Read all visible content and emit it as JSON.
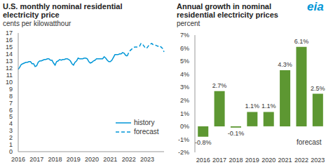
{
  "logo": "eia",
  "chart_data": [
    {
      "type": "line",
      "title": "U.S. monthly nominal residential electricity price",
      "subtitle": "cents per kilowatthour",
      "categories": [
        "2016",
        null,
        null,
        null,
        null,
        null,
        null,
        null,
        null,
        null,
        null,
        null,
        "2017",
        null,
        null,
        null,
        null,
        null,
        null,
        null,
        null,
        null,
        null,
        null,
        "2018",
        null,
        null,
        null,
        null,
        null,
        null,
        null,
        null,
        null,
        null,
        null,
        "2019",
        null,
        null,
        null,
        null,
        null,
        null,
        null,
        null,
        null,
        null,
        null,
        "2020",
        null,
        null,
        null,
        null,
        null,
        null,
        null,
        null,
        null,
        null,
        null,
        "2021",
        null,
        null,
        null,
        null,
        null,
        null,
        null,
        null,
        null,
        null,
        null,
        "2022",
        null,
        null,
        null,
        null,
        null,
        null,
        null,
        null,
        null,
        null,
        null,
        "2023",
        null,
        null,
        null,
        null,
        null,
        null,
        null,
        null,
        null,
        null,
        null
      ],
      "series": [
        {
          "name": "history",
          "color": "#0096d7",
          "line_style": "solid",
          "values": [
            11.8,
            12.1,
            12.5,
            12.6,
            12.7,
            12.8,
            12.8,
            12.9,
            12.9,
            12.6,
            12.6,
            12.2,
            12.3,
            12.8,
            13.0,
            13.0,
            13.1,
            13.2,
            13.2,
            13.3,
            13.3,
            13.1,
            13.1,
            12.7,
            12.4,
            12.9,
            13.0,
            13.2,
            13.1,
            13.2,
            13.2,
            13.3,
            13.3,
            13.2,
            13.0,
            12.6,
            12.4,
            12.8,
            13.0,
            13.4,
            13.3,
            13.3,
            13.3,
            13.4,
            13.4,
            13.3,
            12.9,
            12.7,
            12.8,
            13.0,
            13.1,
            13.3,
            13.3,
            13.3,
            13.3,
            13.3,
            13.6,
            13.4,
            13.1,
            12.9,
            12.9,
            13.1,
            13.5,
            13.9,
            13.9,
            13.9,
            14.0,
            14.0,
            14.2,
            14.1,
            13.8,
            13.7,
            null,
            null,
            null,
            null,
            null,
            null,
            null,
            null,
            null,
            null,
            null,
            null,
            null,
            null,
            null,
            null,
            null,
            null,
            null,
            null,
            null,
            null,
            null,
            null
          ]
        },
        {
          "name": "forecast",
          "color": "#0096d7",
          "line_style": "dashed",
          "values": [
            null,
            null,
            null,
            null,
            null,
            null,
            null,
            null,
            null,
            null,
            null,
            null,
            null,
            null,
            null,
            null,
            null,
            null,
            null,
            null,
            null,
            null,
            null,
            null,
            null,
            null,
            null,
            null,
            null,
            null,
            null,
            null,
            null,
            null,
            null,
            null,
            null,
            null,
            null,
            null,
            null,
            null,
            null,
            null,
            null,
            null,
            null,
            null,
            null,
            null,
            null,
            null,
            null,
            null,
            null,
            null,
            null,
            null,
            null,
            null,
            null,
            null,
            null,
            null,
            null,
            null,
            null,
            null,
            null,
            null,
            null,
            13.7,
            14.2,
            14.5,
            14.7,
            14.9,
            15.0,
            15.0,
            15.0,
            15.1,
            15.5,
            15.4,
            15.1,
            14.8,
            14.9,
            15.2,
            15.4,
            15.5,
            15.3,
            15.3,
            15.2,
            15.1,
            15.2,
            15.0,
            14.8,
            14.3
          ]
        }
      ],
      "ylim": [
        0,
        17
      ],
      "yticks": [
        0,
        1,
        2,
        3,
        4,
        5,
        6,
        7,
        8,
        9,
        10,
        11,
        12,
        13,
        14,
        15,
        16,
        17
      ],
      "grid": false,
      "legend": "lower right"
    },
    {
      "type": "bar",
      "title": "Annual growth in nominal residential electricity prices",
      "subtitle": "percent",
      "categories": [
        "2016",
        "2017",
        "2018",
        "2019",
        "2020",
        "2021",
        "2022",
        "2023"
      ],
      "values": [
        -0.8,
        2.7,
        -0.1,
        1.1,
        1.1,
        4.3,
        6.1,
        2.5
      ],
      "value_labels": [
        "-0.8%",
        "2.7%",
        "-0.1%",
        "1.1%",
        "1.1%",
        "4.3%",
        "6.1%",
        "2.5%"
      ],
      "data_labels": true,
      "color": "#5d9732",
      "ylim": [
        -2,
        7
      ],
      "yticks": [
        {
          "value": -2,
          "label": "-2%"
        },
        {
          "value": -1,
          "label": "-1%"
        },
        {
          "value": 0,
          "label": "0%"
        },
        {
          "value": 1,
          "label": "1%"
        },
        {
          "value": 2,
          "label": "2%"
        },
        {
          "value": 3,
          "label": "3%"
        },
        {
          "value": 4,
          "label": "4%"
        },
        {
          "value": 5,
          "label": "5%"
        },
        {
          "value": 6,
          "label": "6%"
        },
        {
          "value": 7,
          "label": "7%"
        }
      ],
      "grid": false,
      "annotations": [
        "forecast"
      ]
    }
  ]
}
